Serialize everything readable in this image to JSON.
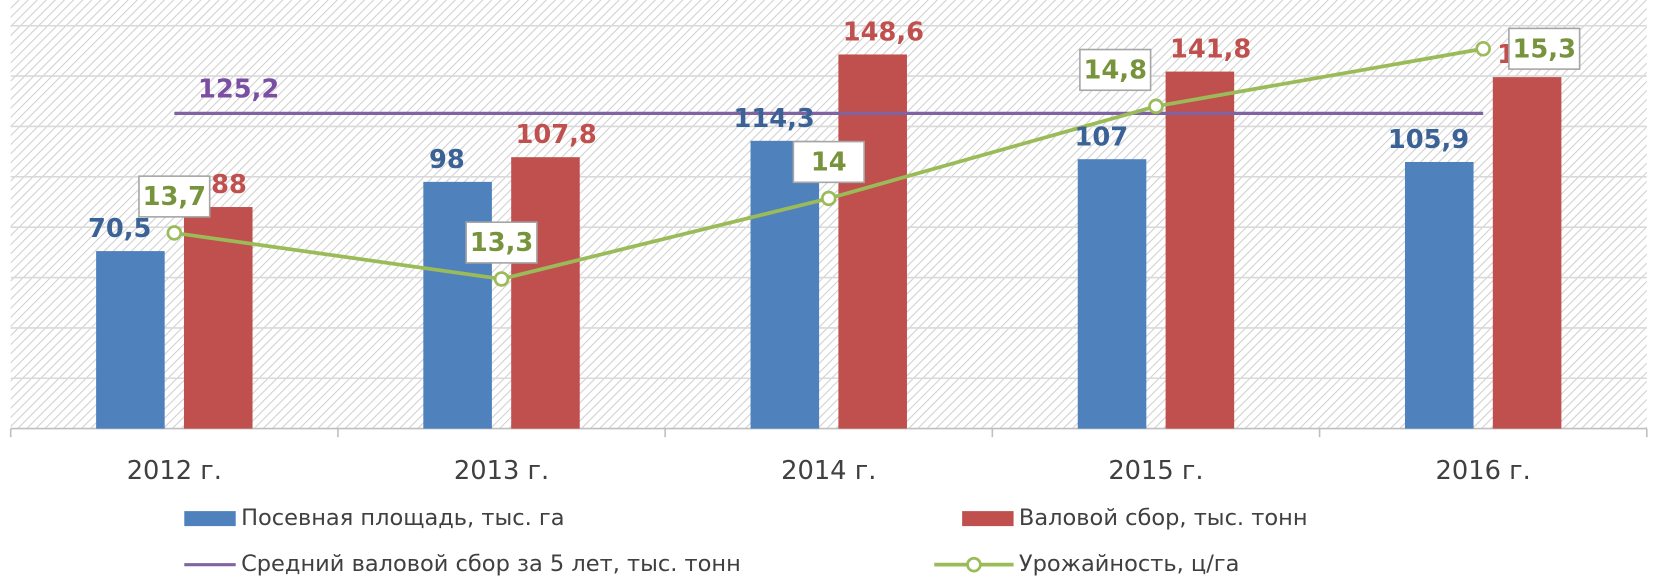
{
  "chart_data": {
    "type": "bar",
    "categories": [
      "2012 г.",
      "2013 г.",
      "2014 г.",
      "2015 г.",
      "2016 г."
    ],
    "ylim": [
      0,
      160
    ],
    "yticks": [
      0,
      20,
      40,
      60,
      80,
      100,
      120,
      140,
      160
    ],
    "y2lim": [
      12,
      15.5
    ],
    "grid": true,
    "series": [
      {
        "name": "Посевная площадь, тыс. га",
        "type": "bar",
        "color": "#4f81bd",
        "label_color": "#3b6296",
        "values": [
          70.5,
          98,
          114.3,
          107,
          105.9
        ],
        "value_labels": [
          "70,5",
          "98",
          "114,3",
          "107",
          "105,9"
        ]
      },
      {
        "name": "Валовой сбор, тыс. тонн",
        "type": "bar",
        "color": "#c0504d",
        "label_color": "#c0504d",
        "values": [
          88,
          107.8,
          148.6,
          141.8,
          139.6
        ],
        "value_labels": [
          "88",
          "107,8",
          "148,6",
          "141,8",
          "139,6"
        ]
      },
      {
        "name": "Средний валовой сбор за 5 лет, тыс. тонн",
        "type": "hline",
        "color": "#8064a2",
        "label_color": "#7a4fa3",
        "value": 125.2,
        "value_label": "125,2"
      },
      {
        "name": "Урожайность, ц/га",
        "type": "line",
        "axis": "y2",
        "color": "#9bbb59",
        "label_color": "#77933c",
        "values": [
          13.7,
          13.3,
          14,
          14.8,
          15.3
        ],
        "value_labels": [
          "13,7",
          "13,3",
          "14",
          "14,8",
          "15,3"
        ]
      }
    ]
  }
}
